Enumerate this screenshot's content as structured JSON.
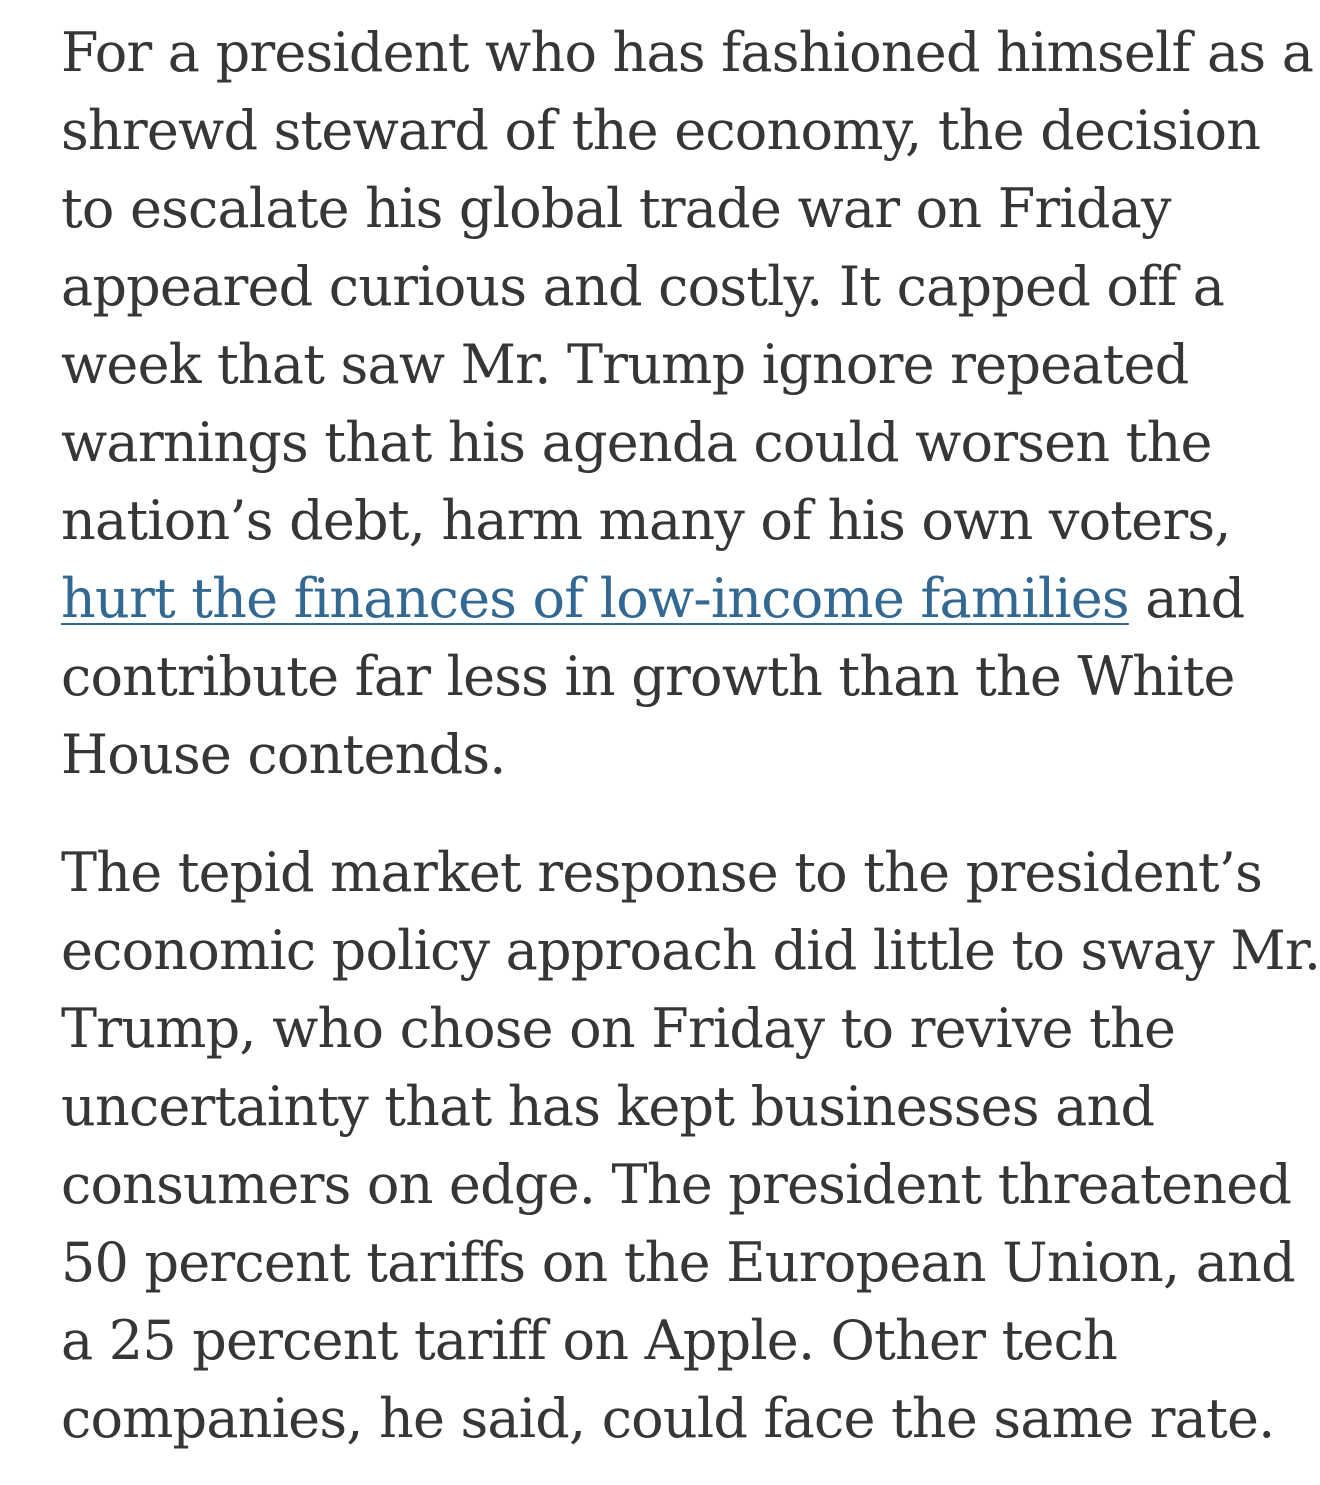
{
  "article": {
    "paragraphs": [
      {
        "lines": [
          "For a president who has fashioned himself as a",
          "shrewd steward of the economy, the decision",
          "to escalate his global trade war on Friday",
          "appeared curious and costly. It capped off a",
          "week that saw Mr. Trump ignore repeated",
          "warnings that his agenda could worsen the",
          "nation’s debt, harm many of his own voters,"
        ],
        "link_line": {
          "link_text": "hurt the finances of low-income families",
          "after_link": " and"
        },
        "lines_after": [
          "contribute far less in growth than the White",
          "House contends."
        ]
      },
      {
        "lines": [
          "The tepid market response to the president’s",
          "economic policy approach did little to sway Mr.",
          "Trump, who chose on Friday to revive the",
          "uncertainty that has kept businesses and",
          "consumers on edge. The president threatened",
          "50 percent tariffs on the European Union, and",
          "a 25 percent tariff on Apple. Other tech",
          "companies, he said, could face the same rate."
        ]
      }
    ],
    "colors": {
      "text": "#363636",
      "link": "#326891",
      "background": "#ffffff"
    }
  }
}
